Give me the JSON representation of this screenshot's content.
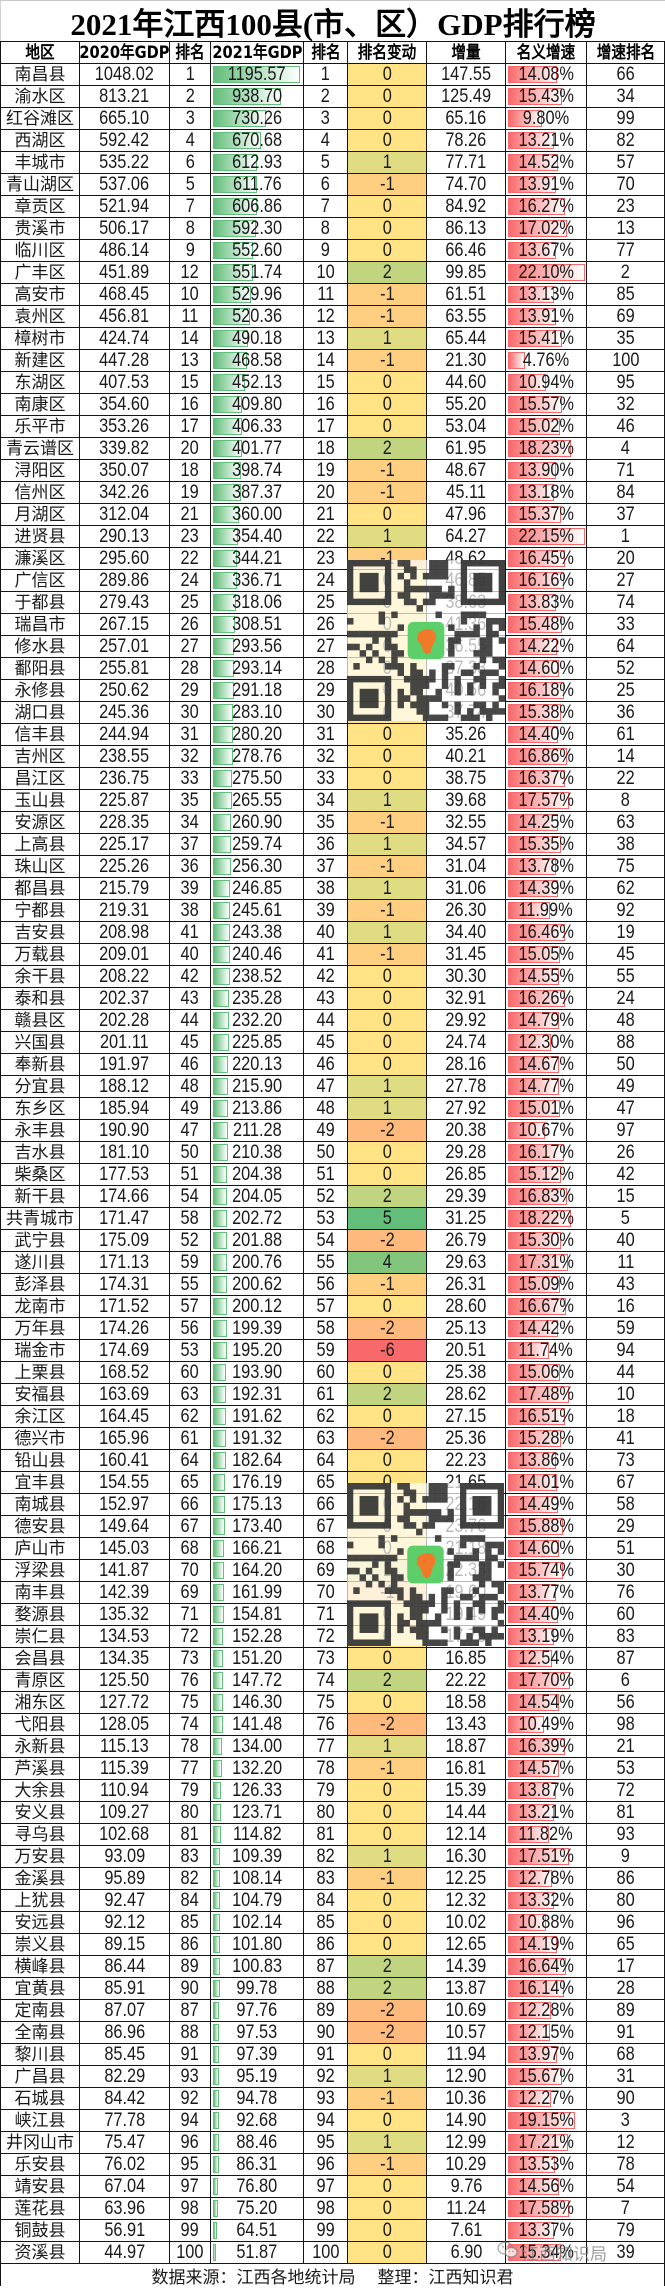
{
  "title": "2021年江西100县(市、区）GDP排行榜",
  "chart_data": {
    "type": "table",
    "title": "2021年江西100县(市、区）GDP排行榜",
    "columns": [
      "地区",
      "2020年GDP",
      "排名",
      "2021年GDP",
      "排名",
      "排名变动",
      "增量",
      "名义增速",
      "增速排名"
    ],
    "rows": [
      [
        "南昌县",
        "1048.02",
        "1",
        "1195.57",
        "1",
        "0",
        "147.55",
        "14.08%",
        "66"
      ],
      [
        "渝水区",
        "813.21",
        "2",
        "938.70",
        "2",
        "0",
        "125.49",
        "15.43%",
        "34"
      ],
      [
        "红谷滩区",
        "665.10",
        "3",
        "730.26",
        "3",
        "0",
        "65.16",
        "9.80%",
        "99"
      ],
      [
        "西湖区",
        "592.42",
        "4",
        "670.68",
        "4",
        "0",
        "78.26",
        "13.21%",
        "82"
      ],
      [
        "丰城市",
        "535.22",
        "6",
        "612.93",
        "5",
        "1",
        "77.71",
        "14.52%",
        "57"
      ],
      [
        "青山湖区",
        "537.06",
        "5",
        "611.76",
        "6",
        "-1",
        "74.70",
        "13.91%",
        "70"
      ],
      [
        "章贡区",
        "521.94",
        "7",
        "606.86",
        "7",
        "0",
        "84.92",
        "16.27%",
        "23"
      ],
      [
        "贵溪市",
        "506.17",
        "8",
        "592.30",
        "8",
        "0",
        "86.13",
        "17.02%",
        "13"
      ],
      [
        "临川区",
        "486.14",
        "9",
        "552.60",
        "9",
        "0",
        "66.46",
        "13.67%",
        "77"
      ],
      [
        "广丰区",
        "451.89",
        "12",
        "551.74",
        "10",
        "2",
        "99.85",
        "22.10%",
        "2"
      ],
      [
        "高安市",
        "468.45",
        "10",
        "529.96",
        "11",
        "-1",
        "61.51",
        "13.13%",
        "85"
      ],
      [
        "袁州区",
        "456.81",
        "11",
        "520.36",
        "12",
        "-1",
        "63.55",
        "13.91%",
        "69"
      ],
      [
        "樟树市",
        "424.74",
        "14",
        "490.18",
        "13",
        "1",
        "65.44",
        "15.41%",
        "35"
      ],
      [
        "新建区",
        "447.28",
        "13",
        "468.58",
        "14",
        "-1",
        "21.30",
        "4.76%",
        "100"
      ],
      [
        "东湖区",
        "407.53",
        "15",
        "452.13",
        "15",
        "0",
        "44.60",
        "10.94%",
        "95"
      ],
      [
        "南康区",
        "354.60",
        "16",
        "409.80",
        "16",
        "0",
        "55.20",
        "15.57%",
        "32"
      ],
      [
        "乐平市",
        "353.26",
        "17",
        "406.33",
        "17",
        "0",
        "53.04",
        "15.02%",
        "46"
      ],
      [
        "青云谱区",
        "339.82",
        "20",
        "401.77",
        "18",
        "2",
        "61.95",
        "18.23%",
        "4"
      ],
      [
        "浔阳区",
        "350.07",
        "18",
        "398.74",
        "19",
        "-1",
        "48.67",
        "13.90%",
        "71"
      ],
      [
        "信州区",
        "342.26",
        "19",
        "387.37",
        "20",
        "-1",
        "45.11",
        "13.18%",
        "84"
      ],
      [
        "月湖区",
        "312.04",
        "21",
        "360.00",
        "21",
        "0",
        "47.96",
        "15.37%",
        "37"
      ],
      [
        "进贤县",
        "290.13",
        "23",
        "354.40",
        "22",
        "1",
        "64.27",
        "22.15%",
        "1"
      ],
      [
        "濂溪区",
        "295.60",
        "22",
        "344.21",
        "23",
        "-1",
        "48.62",
        "16.45%",
        "20"
      ],
      [
        "广信区",
        "289.86",
        "24",
        "336.71",
        "24",
        "0",
        "46.85",
        "16.16%",
        "27"
      ],
      [
        "于都县",
        "279.43",
        "25",
        "318.06",
        "25",
        "0",
        "38.63",
        "13.83%",
        "74"
      ],
      [
        "瑞昌市",
        "267.15",
        "26",
        "308.51",
        "26",
        "0",
        "41.36",
        "15.48%",
        "33"
      ],
      [
        "修水县",
        "257.01",
        "27",
        "293.56",
        "27",
        "0",
        "36.55",
        "14.22%",
        "64"
      ],
      [
        "鄱阳县",
        "255.81",
        "28",
        "293.14",
        "28",
        "0",
        "37.33",
        "14.60%",
        "52"
      ],
      [
        "永修县",
        "250.62",
        "29",
        "291.18",
        "29",
        "0",
        "40.56",
        "16.18%",
        "25"
      ],
      [
        "湖口县",
        "245.36",
        "30",
        "283.10",
        "30",
        "0",
        "37.74",
        "15.38%",
        "36"
      ],
      [
        "信丰县",
        "244.94",
        "31",
        "280.20",
        "31",
        "0",
        "35.26",
        "14.40%",
        "61"
      ],
      [
        "吉州区",
        "238.55",
        "32",
        "278.76",
        "32",
        "0",
        "40.21",
        "16.86%",
        "14"
      ],
      [
        "昌江区",
        "236.75",
        "33",
        "275.50",
        "33",
        "0",
        "38.75",
        "16.37%",
        "22"
      ],
      [
        "玉山县",
        "225.87",
        "35",
        "265.55",
        "34",
        "1",
        "39.68",
        "17.57%",
        "8"
      ],
      [
        "安源区",
        "228.35",
        "34",
        "260.90",
        "35",
        "-1",
        "32.55",
        "14.25%",
        "63"
      ],
      [
        "上高县",
        "225.17",
        "37",
        "259.74",
        "36",
        "1",
        "34.57",
        "15.35%",
        "38"
      ],
      [
        "珠山区",
        "225.26",
        "36",
        "256.30",
        "37",
        "-1",
        "31.04",
        "13.78%",
        "75"
      ],
      [
        "都昌县",
        "215.79",
        "39",
        "246.85",
        "38",
        "1",
        "31.06",
        "14.39%",
        "62"
      ],
      [
        "宁都县",
        "219.31",
        "38",
        "245.61",
        "39",
        "-1",
        "26.30",
        "11.99%",
        "92"
      ],
      [
        "吉安县",
        "208.98",
        "41",
        "243.38",
        "40",
        "1",
        "34.40",
        "16.46%",
        "19"
      ],
      [
        "万载县",
        "209.01",
        "40",
        "240.46",
        "41",
        "-1",
        "31.45",
        "15.05%",
        "45"
      ],
      [
        "余干县",
        "208.22",
        "42",
        "238.52",
        "42",
        "0",
        "30.30",
        "14.55%",
        "55"
      ],
      [
        "泰和县",
        "202.37",
        "43",
        "235.28",
        "43",
        "0",
        "32.91",
        "16.26%",
        "24"
      ],
      [
        "赣县区",
        "202.28",
        "44",
        "232.20",
        "44",
        "0",
        "29.92",
        "14.79%",
        "48"
      ],
      [
        "兴国县",
        "201.11",
        "45",
        "225.85",
        "45",
        "0",
        "24.74",
        "12.30%",
        "88"
      ],
      [
        "奉新县",
        "191.97",
        "46",
        "220.13",
        "46",
        "0",
        "28.16",
        "14.67%",
        "50"
      ],
      [
        "分宜县",
        "188.12",
        "48",
        "215.90",
        "47",
        "1",
        "27.78",
        "14.77%",
        "49"
      ],
      [
        "东乡区",
        "185.94",
        "49",
        "213.86",
        "48",
        "1",
        "27.92",
        "15.01%",
        "47"
      ],
      [
        "永丰县",
        "190.90",
        "47",
        "211.28",
        "49",
        "-2",
        "20.38",
        "10.67%",
        "97"
      ],
      [
        "吉水县",
        "181.10",
        "50",
        "210.38",
        "50",
        "0",
        "29.28",
        "16.17%",
        "26"
      ],
      [
        "柴桑区",
        "177.53",
        "51",
        "204.38",
        "51",
        "0",
        "26.85",
        "15.12%",
        "42"
      ],
      [
        "新干县",
        "174.66",
        "54",
        "204.05",
        "52",
        "2",
        "29.39",
        "16.83%",
        "15"
      ],
      [
        "共青城市",
        "171.47",
        "58",
        "202.72",
        "53",
        "5",
        "31.25",
        "18.22%",
        "5"
      ],
      [
        "武宁县",
        "175.09",
        "52",
        "201.88",
        "54",
        "-2",
        "26.79",
        "15.30%",
        "40"
      ],
      [
        "遂川县",
        "171.13",
        "59",
        "200.76",
        "55",
        "4",
        "29.63",
        "17.31%",
        "11"
      ],
      [
        "彭泽县",
        "174.31",
        "55",
        "200.62",
        "56",
        "-1",
        "26.31",
        "15.09%",
        "43"
      ],
      [
        "龙南市",
        "171.52",
        "57",
        "200.12",
        "57",
        "0",
        "28.60",
        "16.67%",
        "16"
      ],
      [
        "万年县",
        "174.26",
        "56",
        "199.39",
        "58",
        "-2",
        "25.13",
        "14.42%",
        "59"
      ],
      [
        "瑞金市",
        "174.69",
        "53",
        "195.20",
        "59",
        "-6",
        "20.51",
        "11.74%",
        "94"
      ],
      [
        "上栗县",
        "168.52",
        "60",
        "193.90",
        "60",
        "0",
        "25.38",
        "15.06%",
        "44"
      ],
      [
        "安福县",
        "163.69",
        "63",
        "192.31",
        "61",
        "2",
        "28.62",
        "17.48%",
        "10"
      ],
      [
        "余江区",
        "164.45",
        "62",
        "191.62",
        "62",
        "0",
        "27.15",
        "16.51%",
        "18"
      ],
      [
        "德兴市",
        "165.96",
        "61",
        "191.32",
        "63",
        "-2",
        "25.36",
        "15.28%",
        "41"
      ],
      [
        "铅山县",
        "160.41",
        "64",
        "182.64",
        "64",
        "0",
        "22.23",
        "13.86%",
        "73"
      ],
      [
        "宜丰县",
        "154.55",
        "65",
        "176.19",
        "65",
        "0",
        "21.65",
        "14.01%",
        "67"
      ],
      [
        "南城县",
        "152.97",
        "66",
        "175.13",
        "66",
        "0",
        "22.16",
        "14.49%",
        "58"
      ],
      [
        "德安县",
        "149.64",
        "67",
        "173.40",
        "67",
        "0",
        "23.76",
        "15.88%",
        "29"
      ],
      [
        "庐山市",
        "145.03",
        "68",
        "166.21",
        "68",
        "0",
        "21.18",
        "14.60%",
        "51"
      ],
      [
        "浮梁县",
        "141.87",
        "70",
        "164.20",
        "69",
        "1",
        "22.33",
        "15.74%",
        "30"
      ],
      [
        "南丰县",
        "142.39",
        "69",
        "161.99",
        "70",
        "-1",
        "19.60",
        "13.77%",
        "76"
      ],
      [
        "婺源县",
        "135.32",
        "71",
        "154.81",
        "71",
        "0",
        "19.49",
        "14.40%",
        "60"
      ],
      [
        "崇仁县",
        "134.53",
        "72",
        "152.28",
        "72",
        "0",
        "17.75",
        "13.19%",
        "83"
      ],
      [
        "会昌县",
        "134.35",
        "73",
        "151.20",
        "73",
        "0",
        "16.85",
        "12.54%",
        "87"
      ],
      [
        "青原区",
        "125.50",
        "76",
        "147.72",
        "74",
        "2",
        "22.22",
        "17.70%",
        "6"
      ],
      [
        "湘东区",
        "127.72",
        "75",
        "146.30",
        "75",
        "0",
        "18.58",
        "14.54%",
        "56"
      ],
      [
        "弋阳县",
        "128.05",
        "74",
        "141.48",
        "76",
        "-2",
        "13.43",
        "10.49%",
        "98"
      ],
      [
        "永新县",
        "115.13",
        "78",
        "134.00",
        "77",
        "1",
        "18.87",
        "16.39%",
        "21"
      ],
      [
        "芦溪县",
        "115.39",
        "77",
        "132.20",
        "78",
        "-1",
        "16.81",
        "14.57%",
        "53"
      ],
      [
        "大余县",
        "110.94",
        "79",
        "126.33",
        "79",
        "0",
        "15.39",
        "13.87%",
        "72"
      ],
      [
        "安义县",
        "109.27",
        "80",
        "123.71",
        "80",
        "0",
        "14.44",
        "13.21%",
        "81"
      ],
      [
        "寻乌县",
        "102.68",
        "81",
        "114.82",
        "81",
        "0",
        "12.14",
        "11.82%",
        "93"
      ],
      [
        "万安县",
        "93.09",
        "83",
        "109.39",
        "82",
        "1",
        "16.30",
        "17.51%",
        "9"
      ],
      [
        "金溪县",
        "95.89",
        "82",
        "108.14",
        "83",
        "-1",
        "12.25",
        "12.78%",
        "86"
      ],
      [
        "上犹县",
        "92.47",
        "84",
        "104.79",
        "84",
        "0",
        "12.32",
        "13.32%",
        "80"
      ],
      [
        "安远县",
        "92.12",
        "85",
        "102.14",
        "85",
        "0",
        "10.02",
        "10.88%",
        "96"
      ],
      [
        "崇义县",
        "89.15",
        "86",
        "101.80",
        "86",
        "0",
        "12.65",
        "14.19%",
        "65"
      ],
      [
        "横峰县",
        "86.44",
        "89",
        "100.83",
        "87",
        "2",
        "14.39",
        "16.64%",
        "17"
      ],
      [
        "宜黄县",
        "85.91",
        "90",
        "99.78",
        "88",
        "2",
        "13.87",
        "16.14%",
        "28"
      ],
      [
        "定南县",
        "87.07",
        "87",
        "97.76",
        "89",
        "-2",
        "10.69",
        "12.28%",
        "89"
      ],
      [
        "全南县",
        "86.96",
        "88",
        "97.53",
        "90",
        "-2",
        "10.57",
        "12.15%",
        "91"
      ],
      [
        "黎川县",
        "85.45",
        "91",
        "97.39",
        "91",
        "0",
        "11.94",
        "13.97%",
        "68"
      ],
      [
        "广昌县",
        "82.29",
        "93",
        "95.19",
        "92",
        "1",
        "12.90",
        "15.67%",
        "31"
      ],
      [
        "石城县",
        "84.42",
        "92",
        "94.78",
        "93",
        "-1",
        "10.36",
        "12.27%",
        "90"
      ],
      [
        "峡江县",
        "77.78",
        "94",
        "92.68",
        "94",
        "0",
        "14.90",
        "19.15%",
        "3"
      ],
      [
        "井冈山市",
        "75.47",
        "96",
        "88.46",
        "95",
        "1",
        "12.99",
        "17.21%",
        "12"
      ],
      [
        "乐安县",
        "76.02",
        "95",
        "86.31",
        "96",
        "-1",
        "10.29",
        "13.53%",
        "78"
      ],
      [
        "靖安县",
        "67.04",
        "97",
        "76.80",
        "97",
        "0",
        "9.76",
        "14.56%",
        "54"
      ],
      [
        "莲花县",
        "63.96",
        "98",
        "75.20",
        "98",
        "0",
        "11.24",
        "17.58%",
        "7"
      ],
      [
        "铜鼓县",
        "56.91",
        "99",
        "64.51",
        "99",
        "0",
        "7.61",
        "13.37%",
        "79"
      ],
      [
        "资溪县",
        "44.97",
        "100",
        "51.87",
        "100",
        "0",
        "6.90",
        "15.34%",
        "39"
      ]
    ],
    "formatting": {
      "gdp_2021_data_bar": "#63be7b",
      "growth_data_bar": "#f8696b",
      "rank_change_color_scale": {
        "low": "#f8696b",
        "mid": "#ffe384",
        "high": "#63be7b"
      }
    }
  },
  "footer": {
    "source": "数据来源：江西各地统计局",
    "compiler": "整理：江西知识君"
  },
  "watermark": {
    "icon": "wechat-icon",
    "text": "江西知识局"
  },
  "overlays": [
    {
      "icon": "qr-code-icon",
      "center_logo": "jiangxi-map-icon"
    },
    {
      "icon": "qr-code-icon",
      "center_logo": "jiangxi-map-icon"
    }
  ]
}
